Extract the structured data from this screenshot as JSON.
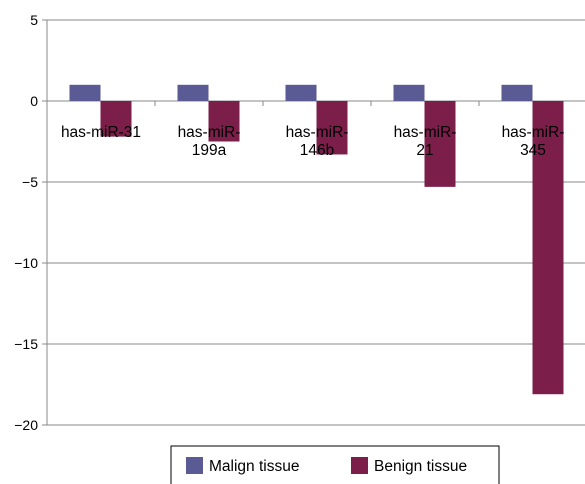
{
  "chart_data": {
    "type": "bar",
    "categories": [
      [
        "has-miR-31"
      ],
      [
        "has-miR-",
        "199a"
      ],
      [
        "has-miR-",
        "146b"
      ],
      [
        "has-miR-",
        "21"
      ],
      [
        "has-miR-",
        "345"
      ]
    ],
    "series": [
      {
        "name": "Malign tissue",
        "color": "#5a5a94",
        "values": [
          1,
          1,
          1,
          1,
          1
        ]
      },
      {
        "name": "Benign tissue",
        "color": "#7b1f4a",
        "values": [
          -2.2,
          -2.5,
          -3.3,
          -5.3,
          -18.1
        ]
      }
    ],
    "yticks": [
      5,
      0,
      -5,
      -10,
      -15,
      -20
    ],
    "ytick_labels": [
      "5",
      "0",
      "−5",
      "−10",
      "−15",
      "−20"
    ],
    "ylim": [
      -20,
      5
    ],
    "grid": true,
    "legend": "bottom"
  }
}
